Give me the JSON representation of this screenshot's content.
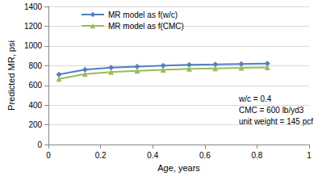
{
  "chart_data": {
    "type": "line",
    "x_label": "Age, years",
    "y_label": "Predicted MR, psi",
    "xlim": [
      0,
      1
    ],
    "xticks": [
      0,
      0.2,
      0.4,
      0.6,
      0.8,
      1
    ],
    "ylim": [
      0,
      1400
    ],
    "yticks": [
      0,
      200,
      400,
      600,
      800,
      1000,
      1200,
      1400
    ],
    "grid": true,
    "legend": "upper left",
    "annotations": [
      "w/c = 0.4",
      "CMC = 600 lb/yd3",
      "unit weight = 145 pcf"
    ],
    "series": [
      {
        "name": "MR model as f(w/c)",
        "color": "#4f81bd",
        "marker": "diamond",
        "x": [
          0.04,
          0.14,
          0.24,
          0.34,
          0.44,
          0.54,
          0.64,
          0.74,
          0.84
        ],
        "values": [
          710,
          760,
          780,
          790,
          800,
          808,
          812,
          818,
          822
        ]
      },
      {
        "name": "MR model as f(CMC)",
        "color": "#9bbb59",
        "marker": "triangle",
        "x": [
          0.04,
          0.14,
          0.24,
          0.34,
          0.44,
          0.54,
          0.64,
          0.74,
          0.84
        ],
        "values": [
          665,
          715,
          735,
          748,
          758,
          768,
          773,
          778,
          782
        ]
      }
    ]
  }
}
